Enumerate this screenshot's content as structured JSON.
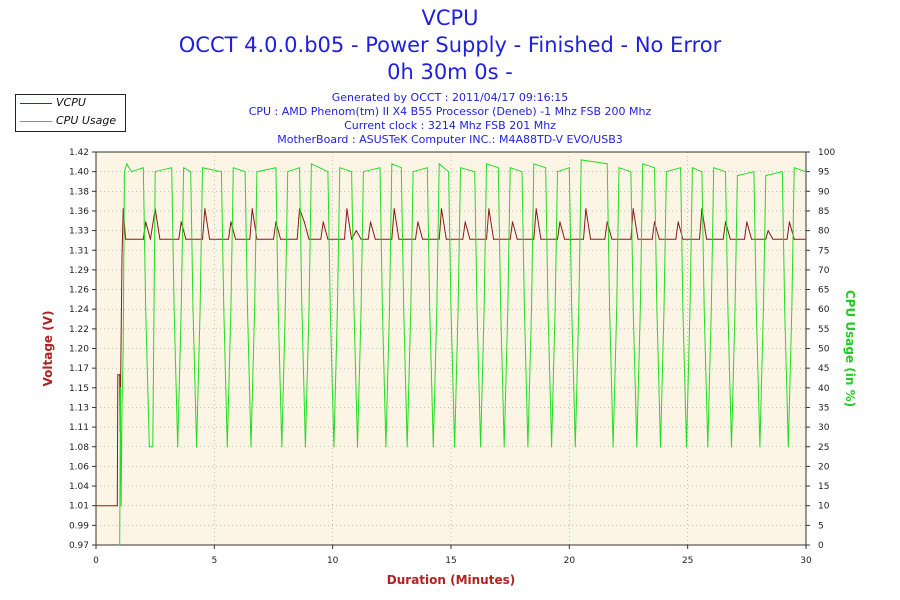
{
  "header": {
    "title": "VCPU",
    "subtitle": "OCCT 4.0.0.b05 - Power Supply - Finished - No Error",
    "duration": "0h 30m 0s -",
    "info": [
      "Generated by OCCT : 2011/04/17 09:16:15",
      "CPU : AMD Phenom(tm) II X4 B55 Processor (Deneb) -1 Mhz FSB 200 Mhz",
      "Current clock : 3214 Mhz FSB 201 Mhz",
      "MotherBoard : ASUSTeK Computer INC.: M4A88TD-V EVO/USB3"
    ]
  },
  "legend": {
    "items": [
      {
        "label": "VCPU",
        "color": "#8b1a1a"
      },
      {
        "label": "CPU Usage",
        "color": "#22dd22"
      }
    ]
  },
  "chart_data": {
    "type": "line",
    "xlabel": "Duration (Minutes)",
    "ylabel": "Voltage (V)",
    "y2label": "CPU Usage (in %)",
    "xlim": [
      0,
      30
    ],
    "ylim": [
      0.97,
      1.42
    ],
    "y2lim": [
      0,
      100
    ],
    "x_ticks": [
      "0",
      "5",
      "10",
      "15",
      "20",
      "25",
      "30"
    ],
    "y_ticks": [
      "0.97",
      "0.99",
      "1.01",
      "1.04",
      "1.06",
      "1.08",
      "1.11",
      "1.13",
      "1.15",
      "1.17",
      "1.20",
      "1.22",
      "1.24",
      "1.26",
      "1.29",
      "1.31",
      "1.33",
      "1.36",
      "1.38",
      "1.40",
      "1.42"
    ],
    "y2_ticks": [
      "0",
      "5",
      "10",
      "15",
      "20",
      "25",
      "30",
      "35",
      "40",
      "45",
      "50",
      "55",
      "60",
      "65",
      "70",
      "75",
      "80",
      "85",
      "90",
      "95",
      "100"
    ],
    "grid": true,
    "plot_background": "#fcf4e4",
    "series": [
      {
        "name": "VCPU",
        "axis": "left",
        "color": "#8b1a1a",
        "x": [
          0,
          0.9,
          0.92,
          1.0,
          1.02,
          1.1,
          1.15,
          1.25,
          1.35,
          1.5,
          2.0,
          2.1,
          2.3,
          2.5,
          2.7,
          3.5,
          3.6,
          3.8,
          4.0,
          4.5,
          4.6,
          4.8,
          5.6,
          5.7,
          5.9,
          6.5,
          6.6,
          6.8,
          7.5,
          7.6,
          7.8,
          8.5,
          8.6,
          8.8,
          9.0,
          9.5,
          9.6,
          9.8,
          10.5,
          10.6,
          10.8,
          11.0,
          11.2,
          11.5,
          11.6,
          11.8,
          12.5,
          12.6,
          12.8,
          13.5,
          13.6,
          13.8,
          14.5,
          14.6,
          14.8,
          15.5,
          15.6,
          15.8,
          16.5,
          16.6,
          16.8,
          17.5,
          17.6,
          17.8,
          18.5,
          18.6,
          18.8,
          19.5,
          19.6,
          19.8,
          20.6,
          20.7,
          20.9,
          21.5,
          21.6,
          21.8,
          22.6,
          22.7,
          22.9,
          23.5,
          23.6,
          23.8,
          24.5,
          24.6,
          24.8,
          25.5,
          25.6,
          25.8,
          26.5,
          26.6,
          26.8,
          27.4,
          27.5,
          27.7,
          28.3,
          28.4,
          28.6,
          29.2,
          29.3,
          29.5,
          30.0
        ],
        "values": [
          1.015,
          1.015,
          1.165,
          1.165,
          1.1,
          1.3,
          1.355,
          1.32,
          1.32,
          1.32,
          1.32,
          1.34,
          1.32,
          1.355,
          1.32,
          1.32,
          1.34,
          1.32,
          1.32,
          1.32,
          1.355,
          1.32,
          1.32,
          1.34,
          1.32,
          1.32,
          1.355,
          1.32,
          1.32,
          1.34,
          1.32,
          1.32,
          1.355,
          1.34,
          1.32,
          1.32,
          1.34,
          1.32,
          1.32,
          1.355,
          1.32,
          1.33,
          1.32,
          1.32,
          1.34,
          1.32,
          1.32,
          1.355,
          1.32,
          1.32,
          1.34,
          1.32,
          1.32,
          1.355,
          1.32,
          1.32,
          1.34,
          1.32,
          1.32,
          1.355,
          1.32,
          1.32,
          1.34,
          1.32,
          1.32,
          1.355,
          1.32,
          1.32,
          1.34,
          1.32,
          1.32,
          1.355,
          1.32,
          1.32,
          1.34,
          1.32,
          1.32,
          1.355,
          1.32,
          1.32,
          1.34,
          1.32,
          1.32,
          1.34,
          1.32,
          1.32,
          1.355,
          1.32,
          1.32,
          1.34,
          1.32,
          1.32,
          1.34,
          1.32,
          1.32,
          1.33,
          1.32,
          1.32,
          1.34,
          1.32,
          1.32
        ]
      },
      {
        "name": "CPU Usage",
        "axis": "right",
        "color": "#22dd22",
        "x": [
          1.0,
          1.03,
          1.06,
          1.1,
          1.15,
          1.2,
          1.3,
          1.5,
          2.0,
          2.1,
          2.25,
          2.4,
          2.5,
          3.2,
          3.3,
          3.45,
          3.6,
          3.7,
          4.0,
          4.1,
          4.25,
          4.4,
          4.5,
          5.3,
          5.4,
          5.55,
          5.7,
          5.8,
          6.3,
          6.4,
          6.55,
          6.7,
          6.8,
          7.6,
          7.7,
          7.85,
          8.0,
          8.1,
          8.6,
          8.7,
          8.85,
          9.0,
          9.1,
          9.8,
          9.9,
          10.05,
          10.2,
          10.3,
          10.8,
          10.9,
          11.05,
          11.2,
          11.3,
          12.0,
          12.1,
          12.25,
          12.4,
          12.5,
          12.9,
          13.0,
          13.15,
          13.3,
          13.4,
          14.0,
          14.1,
          14.25,
          14.4,
          14.5,
          14.9,
          15.0,
          15.15,
          15.3,
          15.4,
          16.0,
          16.1,
          16.25,
          16.4,
          16.5,
          17.0,
          17.1,
          17.25,
          17.4,
          17.5,
          18.0,
          18.1,
          18.25,
          18.4,
          18.5,
          19.0,
          19.1,
          19.25,
          19.4,
          19.5,
          20.0,
          20.1,
          20.25,
          20.4,
          20.5,
          21.6,
          21.7,
          21.85,
          22.0,
          22.1,
          22.6,
          22.7,
          22.85,
          23.0,
          23.1,
          23.6,
          23.7,
          23.85,
          24.0,
          24.1,
          24.7,
          24.8,
          24.95,
          25.1,
          25.2,
          25.6,
          25.7,
          25.85,
          26.0,
          26.1,
          26.6,
          26.7,
          26.85,
          27.0,
          27.1,
          27.8,
          27.9,
          28.05,
          28.2,
          28.3,
          29.0,
          29.1,
          29.25,
          29.4,
          29.5,
          30.0
        ],
        "values": [
          0,
          40,
          10,
          35,
          50,
          95,
          97,
          95,
          96,
          60,
          25,
          25,
          95,
          96,
          60,
          25,
          60,
          96,
          95,
          60,
          25,
          60,
          96,
          95,
          60,
          25,
          60,
          96,
          95,
          60,
          25,
          60,
          95,
          96,
          60,
          25,
          60,
          95,
          96,
          60,
          25,
          60,
          97,
          95,
          60,
          25,
          60,
          96,
          95,
          60,
          25,
          60,
          95,
          96,
          60,
          25,
          60,
          97,
          96,
          60,
          25,
          60,
          95,
          96,
          60,
          25,
          60,
          97,
          95,
          60,
          25,
          60,
          96,
          95,
          60,
          25,
          60,
          97,
          96,
          60,
          25,
          60,
          96,
          95,
          60,
          25,
          60,
          97,
          96,
          60,
          25,
          60,
          95,
          96,
          60,
          25,
          60,
          98,
          97,
          60,
          25,
          60,
          96,
          95,
          60,
          25,
          60,
          97,
          96,
          60,
          25,
          60,
          95,
          96,
          60,
          25,
          60,
          96,
          95,
          60,
          25,
          60,
          96,
          95,
          60,
          25,
          60,
          94,
          95,
          60,
          25,
          60,
          94,
          95,
          60,
          25,
          60,
          96,
          95
        ]
      }
    ]
  }
}
